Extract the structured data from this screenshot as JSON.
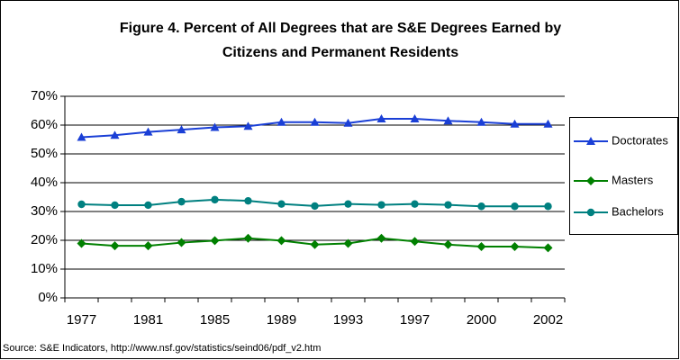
{
  "chart_data": {
    "type": "line",
    "title": [
      "Figure 4. Percent of All Degrees that are S&E Degrees Earned by",
      "Citizens and Permanent Residents"
    ],
    "categories": [
      "1977",
      null,
      "1981",
      null,
      "1985",
      null,
      "1989",
      null,
      "1993",
      null,
      "1997",
      null,
      "2000",
      null,
      "2002"
    ],
    "series": [
      {
        "name": "Doctorates",
        "color": "#1a3fd6",
        "marker": "triangle",
        "values": [
          55.8,
          56.5,
          57.6,
          58.4,
          59.2,
          59.6,
          61.0,
          61.0,
          60.7,
          62.2,
          62.2,
          61.5,
          61.0,
          60.4,
          60.4
        ]
      },
      {
        "name": "Masters",
        "color": "#008000",
        "marker": "diamond",
        "values": [
          18.9,
          18.1,
          18.1,
          19.2,
          19.9,
          20.7,
          19.9,
          18.5,
          18.9,
          20.7,
          19.6,
          18.5,
          17.8,
          17.8,
          17.4
        ]
      },
      {
        "name": "Bachelors",
        "color": "#008080",
        "marker": "circle",
        "values": [
          32.5,
          32.2,
          32.2,
          33.4,
          34.1,
          33.7,
          32.6,
          31.9,
          32.6,
          32.3,
          32.6,
          32.3,
          31.8,
          31.8,
          31.8
        ]
      }
    ],
    "ylim": [
      0,
      70
    ],
    "yticks": [
      {
        "value": 0,
        "label": "0%"
      },
      {
        "value": 10,
        "label": "10%"
      },
      {
        "value": 20,
        "label": "20%"
      },
      {
        "value": 30,
        "label": "30%"
      },
      {
        "value": 40,
        "label": "40%"
      },
      {
        "value": 50,
        "label": "50%"
      },
      {
        "value": 60,
        "label": "60%"
      },
      {
        "value": 70,
        "label": "70%"
      }
    ],
    "grid": true,
    "legend": "right",
    "source": "Source: S&E Indicators, http://www.nsf.gov/statistics/seind06/pdf_v2.htm"
  }
}
